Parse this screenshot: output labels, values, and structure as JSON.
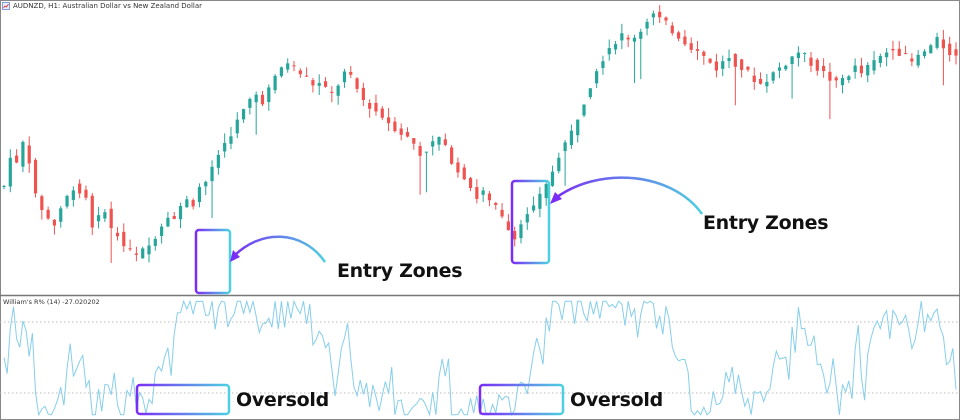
{
  "window": {
    "symbol_label": "AUDNZD, H1:  Australian Dollar vs New Zealand Dollar",
    "icon": "chart-window-icon"
  },
  "indicator": {
    "label": "William's R% (14) -27.020202"
  },
  "annotations": {
    "entry_zones_1": "Entry Zones",
    "entry_zones_2": "Entry Zones",
    "oversold_1": "Oversold",
    "oversold_2": "Oversold"
  },
  "colors": {
    "bull_candle": "#26a69a",
    "bear_candle": "#ef5350",
    "wpr_line": "#87ceeb",
    "level_dots": "#bbbbbb",
    "box_gradient_start": "#7b2cf5",
    "box_gradient_end": "#4dd0e1",
    "panel_separator": "#777777"
  },
  "chart_data": [
    {
      "type": "candlestick",
      "series_name": "AUDNZD, H1",
      "close_path": [
        64,
        70,
        68,
        72,
        69,
        62,
        60,
        58,
        57,
        60,
        62,
        64,
        63,
        62,
        57,
        58,
        60,
        56,
        55,
        53,
        52,
        51,
        52,
        53,
        55,
        57,
        59,
        58,
        60,
        62,
        61,
        64,
        65,
        67,
        70,
        72,
        74,
        76,
        78,
        80,
        81,
        80,
        82,
        84,
        86,
        87,
        86,
        85,
        84,
        83,
        83,
        82,
        81,
        83,
        85,
        84,
        82,
        80,
        79,
        78,
        77,
        76,
        75,
        74,
        73,
        72,
        70,
        71,
        72,
        73,
        71,
        69,
        67,
        66,
        64,
        62,
        63,
        61,
        60,
        58,
        56,
        55,
        57,
        59,
        60,
        62,
        64,
        67,
        70,
        72,
        74,
        77,
        80,
        83,
        86,
        88,
        90,
        91,
        92,
        91,
        92,
        93,
        95,
        96,
        95,
        94,
        93,
        92,
        91,
        90,
        89,
        88,
        87,
        86,
        87,
        88,
        87,
        86,
        85,
        84,
        83,
        84,
        85,
        86,
        87,
        88,
        89,
        88,
        87,
        86,
        85,
        84,
        83,
        84,
        85,
        86,
        85,
        86,
        87,
        88,
        89,
        90,
        89,
        88,
        87,
        88,
        89,
        90,
        91,
        90,
        89,
        88
      ]
    },
    {
      "type": "line",
      "series_name": "William's R% (14)",
      "levels": [
        -20,
        -80
      ],
      "ylim": [
        -100,
        0
      ]
    }
  ]
}
